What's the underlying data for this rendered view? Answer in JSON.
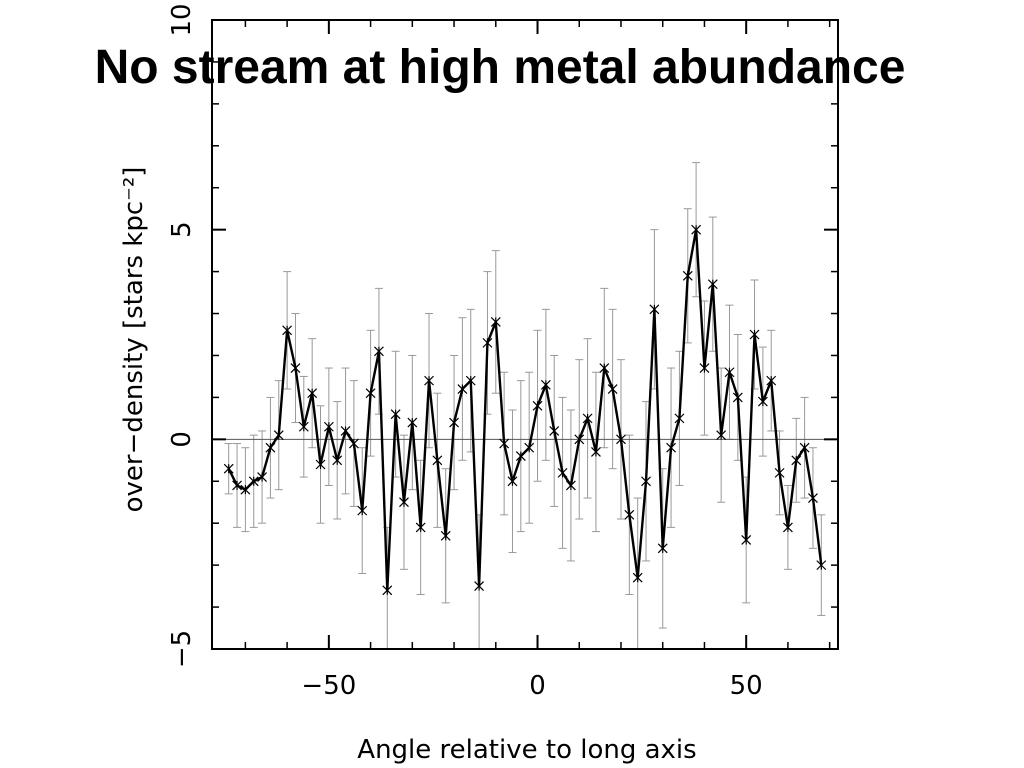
{
  "slide": {
    "title": "No stream at high metal abundance"
  },
  "chart_data": {
    "type": "line",
    "title": "No stream at high metal abundance",
    "xlabel": "Angle relative to long axis",
    "ylabel": "over−density [stars kpc⁻²]",
    "xlim": [
      -78,
      72
    ],
    "ylim": [
      -5,
      10
    ],
    "xticks": [
      -50,
      0,
      50
    ],
    "xtick_labels": [
      "−50",
      "0",
      "50"
    ],
    "yticks": [
      -5,
      0,
      5,
      10
    ],
    "ytick_labels": [
      "−5",
      "0",
      "5",
      "10"
    ],
    "grid": false,
    "reference_line_y": 0,
    "series": [
      {
        "marker": "asterisk",
        "x": [
          -74,
          -72,
          -70,
          -68,
          -66,
          -64,
          -62,
          -60,
          -58,
          -56,
          -54,
          -52,
          -50,
          -48,
          -46,
          -44,
          -42,
          -40,
          -38,
          -36,
          -34,
          -32,
          -30,
          -28,
          -26,
          -24,
          -22,
          -20,
          -18,
          -16,
          -14,
          -12,
          -10,
          -8,
          -6,
          -4,
          -2,
          0,
          2,
          4,
          6,
          8,
          10,
          12,
          14,
          16,
          18,
          20,
          22,
          24,
          26,
          28,
          30,
          32,
          34,
          36,
          38,
          40,
          42,
          44,
          46,
          48,
          50,
          52,
          54,
          56,
          58,
          60,
          62,
          64,
          66,
          68
        ],
        "y": [
          -0.7,
          -1.1,
          -1.2,
          -1.0,
          -0.9,
          -0.2,
          0.1,
          2.6,
          1.7,
          0.3,
          1.1,
          -0.6,
          0.3,
          -0.5,
          0.2,
          -0.1,
          -1.7,
          1.1,
          2.1,
          -3.6,
          0.6,
          -1.5,
          0.4,
          -2.1,
          1.4,
          -0.5,
          -2.3,
          0.4,
          1.2,
          1.4,
          -3.5,
          2.3,
          2.8,
          -0.1,
          -1.0,
          -0.4,
          -0.2,
          0.8,
          1.3,
          0.2,
          -0.8,
          -1.1,
          0.0,
          0.5,
          -0.3,
          1.7,
          1.2,
          0.0,
          -1.8,
          -3.3,
          -1.0,
          3.1,
          -2.6,
          -0.2,
          0.5,
          3.9,
          5.0,
          1.7,
          3.7,
          0.1,
          1.6,
          1.0,
          -2.4,
          2.5,
          0.9,
          1.4,
          -0.8,
          -2.1,
          -0.5,
          -0.2,
          -1.4,
          -3.0
        ],
        "err": [
          0.6,
          1.0,
          1.0,
          1.1,
          1.1,
          1.2,
          1.3,
          1.4,
          1.3,
          1.2,
          1.3,
          1.4,
          1.4,
          1.4,
          1.5,
          1.5,
          1.5,
          1.5,
          1.5,
          1.5,
          1.5,
          1.6,
          1.6,
          1.6,
          1.6,
          1.6,
          1.6,
          1.6,
          1.7,
          1.7,
          1.7,
          1.7,
          1.7,
          1.7,
          1.7,
          1.8,
          1.8,
          1.8,
          1.8,
          1.8,
          1.8,
          1.8,
          1.9,
          1.9,
          1.9,
          1.9,
          1.9,
          1.9,
          1.9,
          1.9,
          1.9,
          1.9,
          1.9,
          1.9,
          1.6,
          1.6,
          1.6,
          1.6,
          1.6,
          1.6,
          1.6,
          1.5,
          1.5,
          1.3,
          1.3,
          1.2,
          1.0,
          1.0,
          1.0,
          1.2,
          1.2,
          1.2
        ]
      }
    ]
  }
}
